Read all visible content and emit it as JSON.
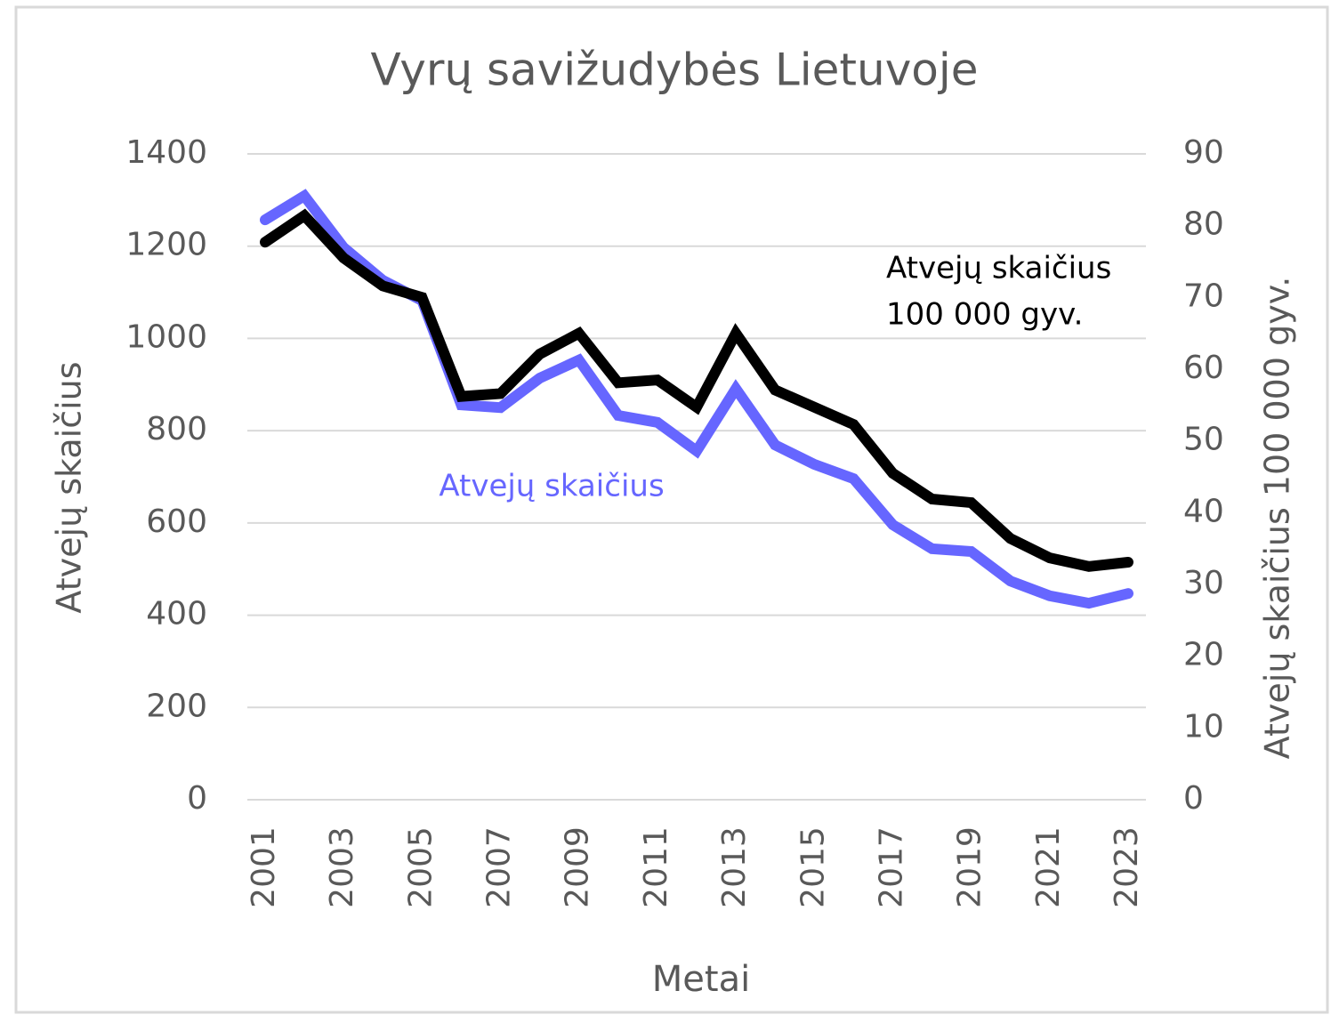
{
  "chart_data": {
    "type": "line",
    "title": "Vyrų savižudybės Lietuvoje",
    "x_label": "Metai",
    "y_label": "Atvejų skaičius",
    "y2_label": "Atvejų skaičius 100 000 gyv.",
    "categories": [
      "2001",
      null,
      "2003",
      null,
      "2005",
      null,
      "2007",
      null,
      "2009",
      null,
      "2011",
      null,
      "2013",
      null,
      "2015",
      null,
      "2017",
      null,
      "2019",
      null,
      "2021",
      null,
      "2023"
    ],
    "series": [
      {
        "name": "Atvejų skaičius",
        "color": "#6666ff",
        "axis": "y",
        "values": [
          1257,
          1309,
          1197,
          1126,
          1082,
          856,
          850,
          914,
          953,
          833,
          818,
          756,
          891,
          769,
          727,
          696,
          596,
          544,
          538,
          474,
          442,
          426,
          447
        ]
      },
      {
        "name": "Atvejų skaičius 100 000 gyv.",
        "color": "#000000",
        "axis": "y2",
        "values": [
          77.7,
          81.4,
          75.5,
          71.6,
          70.0,
          56.2,
          56.6,
          62.1,
          65.0,
          58.1,
          58.5,
          54.7,
          65.0,
          57.1,
          54.7,
          52.3,
          45.5,
          41.9,
          41.4,
          36.4,
          33.7,
          32.5,
          33.1
        ]
      }
    ],
    "annotations": [
      {
        "lines": [
          "Atvejų skaičius"
        ],
        "color": "#6666ff"
      },
      {
        "lines": [
          "Atvejų skaičius",
          "100 000 gyv."
        ],
        "color": "#000000"
      }
    ],
    "ylim": [
      0,
      1400
    ],
    "yticks": [
      0,
      200,
      400,
      600,
      800,
      1000,
      1200,
      1400
    ],
    "y2lim": [
      0,
      90
    ],
    "y2ticks": [
      0,
      10,
      20,
      30,
      40,
      50,
      60,
      70,
      80,
      90
    ],
    "grid": true
  }
}
